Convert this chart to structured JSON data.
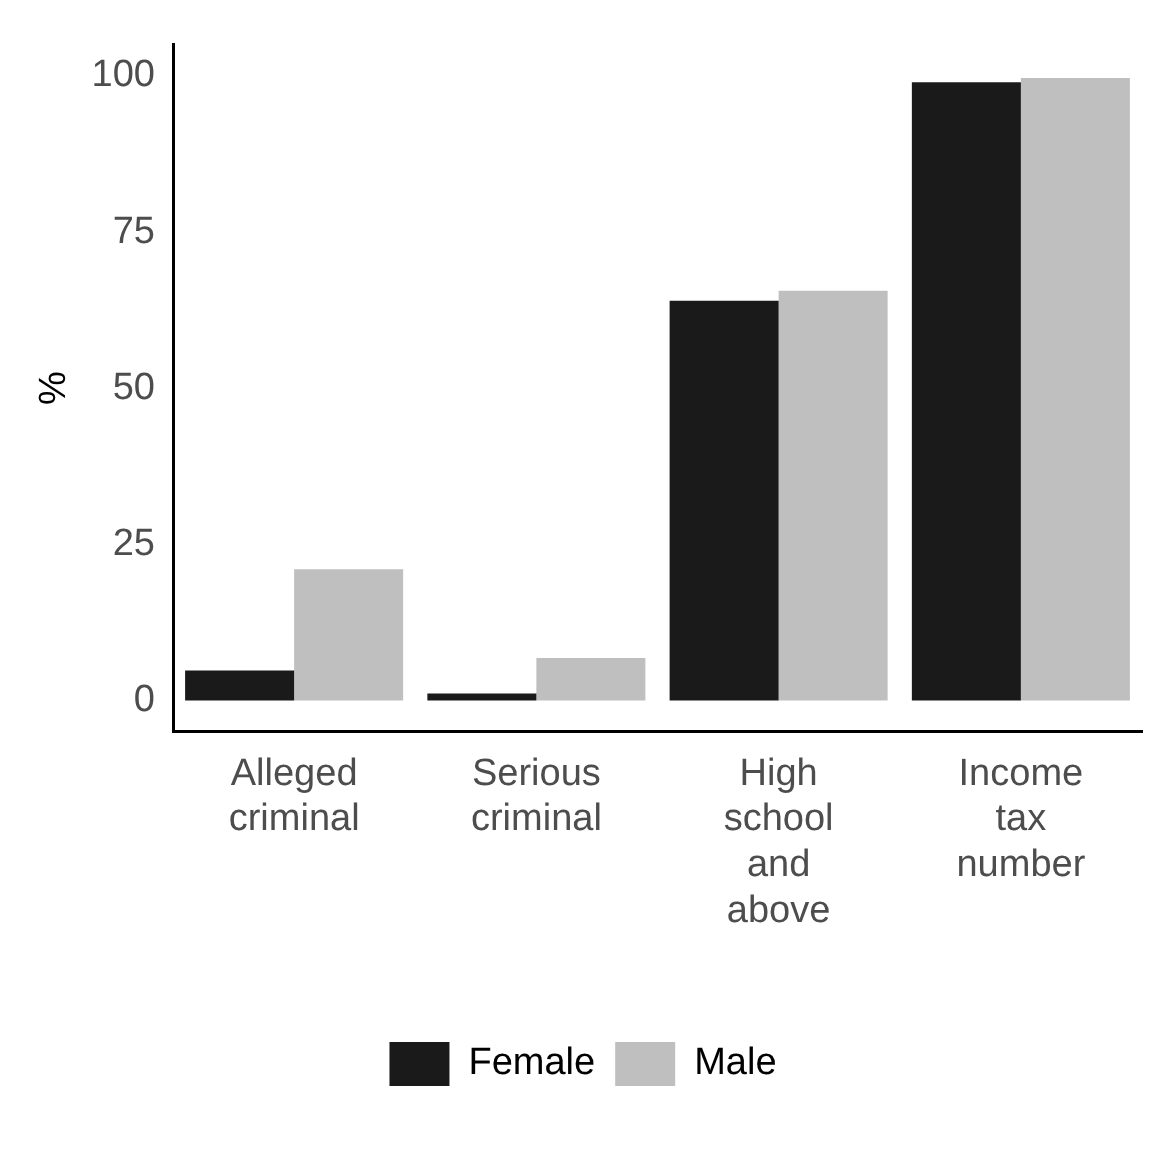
{
  "chart_data": {
    "type": "bar",
    "ylabel": "%",
    "categories": [
      "Alleged criminal",
      "Serious criminal",
      "High school and above",
      "Income tax number"
    ],
    "series": [
      {
        "name": "Female",
        "color": "#1a1a1a",
        "values": [
          4.8,
          1.1,
          64,
          99
        ]
      },
      {
        "name": "Male",
        "color": "#bfbfbf",
        "values": [
          21,
          6.8,
          65.6,
          99.7
        ]
      }
    ],
    "ylim": [
      -5,
      105
    ],
    "yticks": [
      0,
      25,
      50,
      75,
      100
    ],
    "grid": false,
    "legend": "bottom"
  }
}
